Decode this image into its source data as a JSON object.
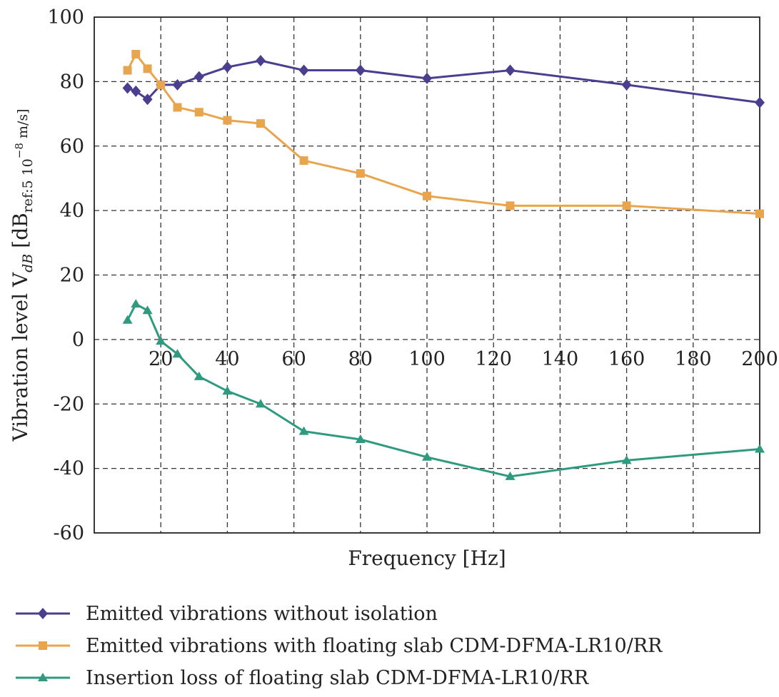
{
  "chart_data": {
    "type": "line",
    "xlabel": "Frequency [Hz]",
    "ylabel": "Vibration level V",
    "ylabel_sub": "dB",
    "ylabel_unit_prefix": "[dB",
    "ylabel_unit_sub": "ref:5 10",
    "ylabel_unit_sup": "−8",
    "ylabel_unit_suffix": " m/s]",
    "xlim": [
      0,
      200
    ],
    "ylim": [
      -60,
      100
    ],
    "xticks": [
      20,
      40,
      60,
      80,
      100,
      120,
      140,
      160,
      180,
      200
    ],
    "yticks": [
      -60,
      -40,
      -20,
      0,
      20,
      40,
      60,
      80,
      100
    ],
    "grid": true,
    "legend_position": "bottom",
    "series": [
      {
        "name": "Emitted vibrations without isolation",
        "color": "#4a3f8f",
        "marker": "diamond",
        "x": [
          10,
          12.5,
          16,
          20,
          25,
          31.5,
          40,
          50,
          63,
          80,
          100,
          125,
          160,
          200
        ],
        "y": [
          78,
          77,
          74.5,
          79,
          79,
          81.5,
          84.5,
          86.5,
          83.5,
          83.5,
          81,
          83.5,
          79,
          73.5
        ]
      },
      {
        "name": "Emitted vibrations with floating slab CDM-DFMA-LR10/RR",
        "color": "#e8a54e",
        "marker": "square",
        "x": [
          10,
          12.5,
          16,
          20,
          25,
          31.5,
          40,
          50,
          63,
          80,
          100,
          125,
          160,
          200
        ],
        "y": [
          83.5,
          88.5,
          84,
          79,
          72,
          70.5,
          68,
          67,
          55.5,
          51.5,
          44.5,
          41.5,
          41.5,
          39
        ]
      },
      {
        "name": "Insertion loss of floating slab CDM-DFMA-LR10/RR",
        "color": "#2e9a7f",
        "marker": "triangle",
        "x": [
          10,
          12.5,
          16,
          20,
          25,
          31.5,
          40,
          50,
          63,
          80,
          100,
          125,
          160,
          200
        ],
        "y": [
          6,
          11,
          9,
          -0.5,
          -4.5,
          -11.5,
          -16,
          -20,
          -28.5,
          -31,
          -36.5,
          -42.5,
          -37.5,
          -34
        ]
      }
    ]
  }
}
